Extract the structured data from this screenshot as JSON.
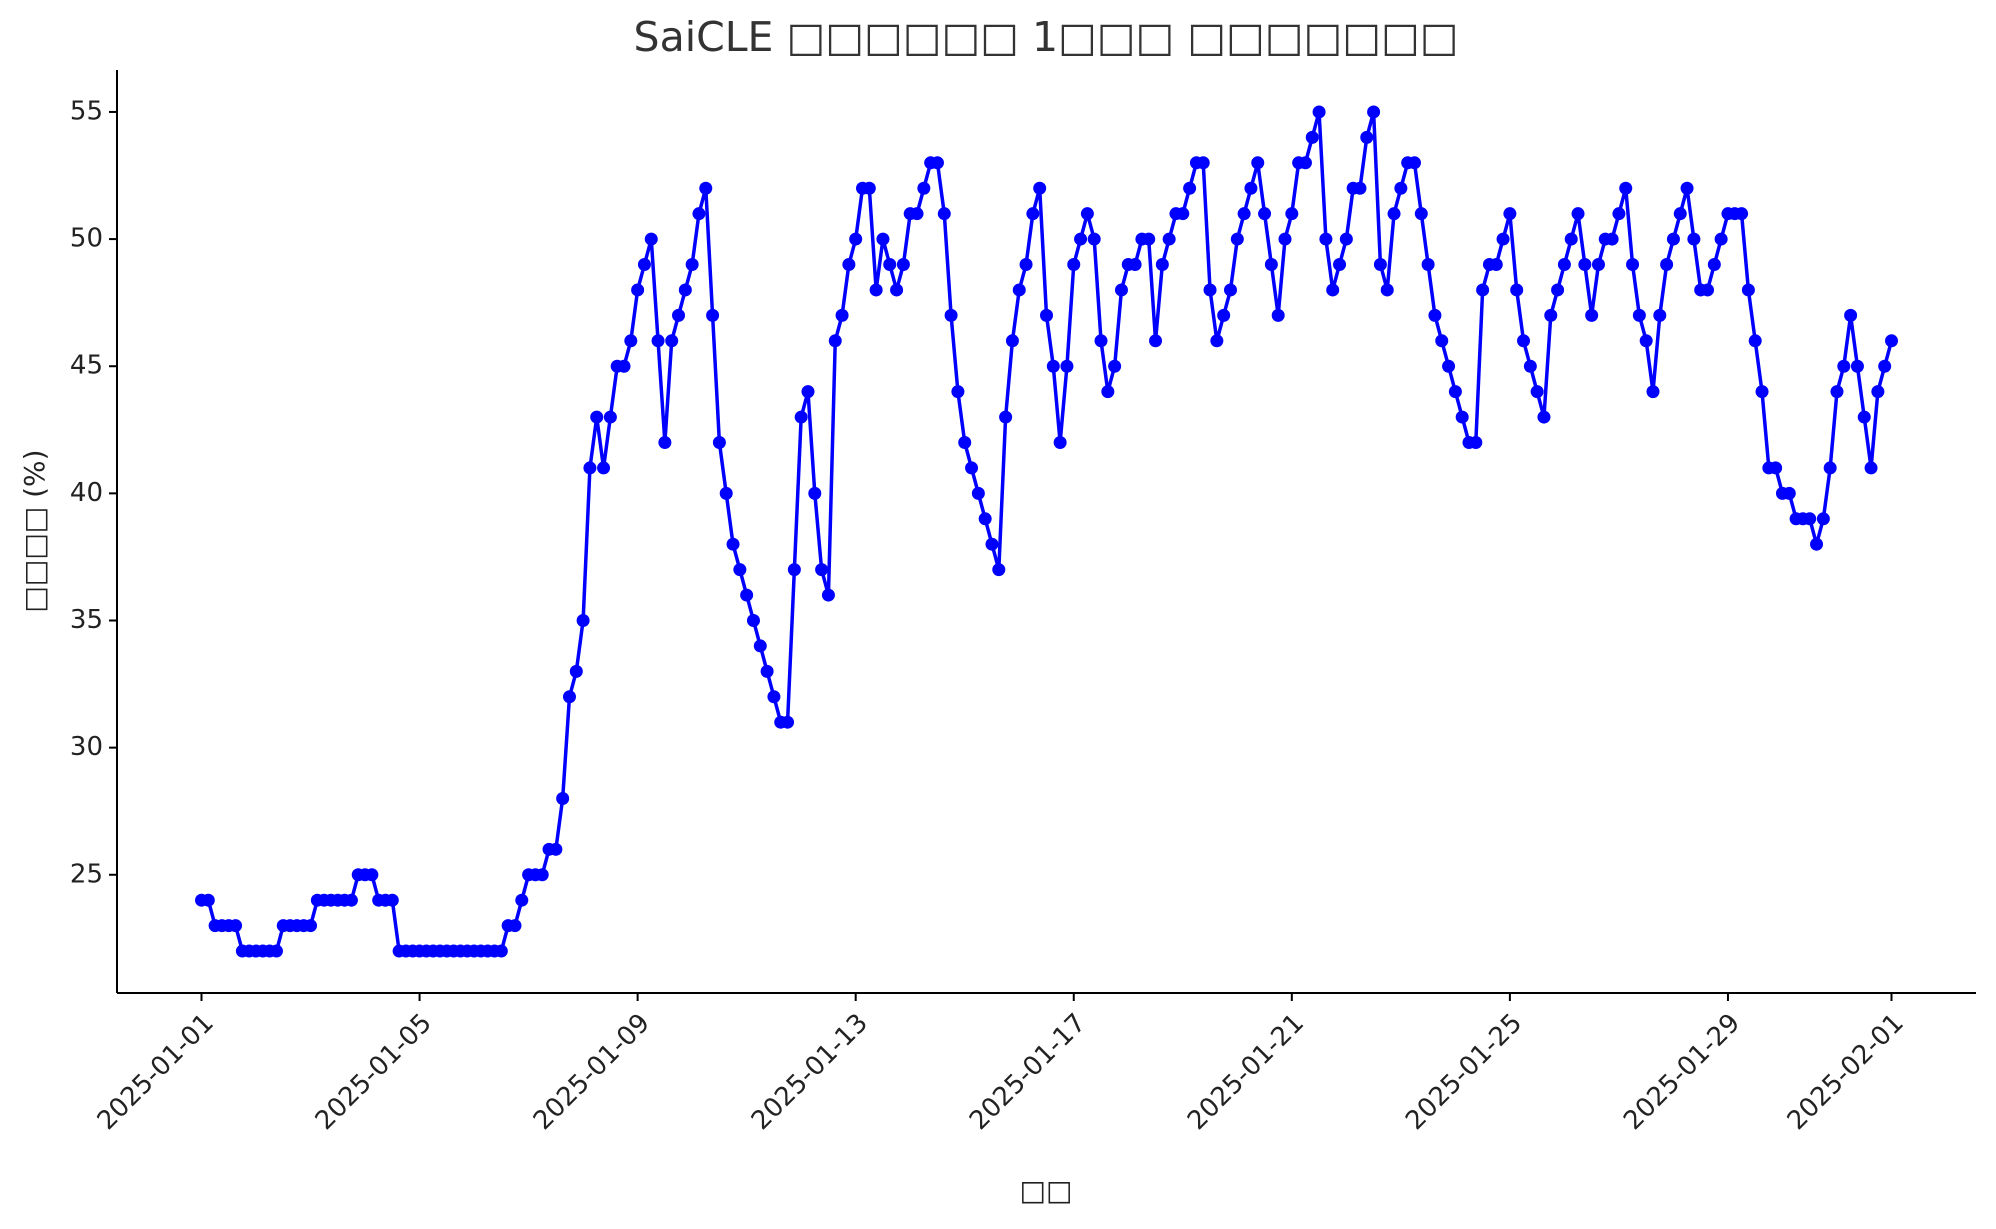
{
  "chart_data": {
    "type": "line",
    "title": "SaiCLE □□□□□□ 1□□□ □□□□□□□",
    "x_label": "□□",
    "y_label": "□□□□ (%)",
    "color": "#0000ff",
    "marker": true,
    "grid": false,
    "x": [
      "2025-01-01T00:00",
      "2025-01-01T03:00",
      "2025-01-01T06:00",
      "2025-01-01T09:00",
      "2025-01-01T12:00",
      "2025-01-01T15:00",
      "2025-01-01T18:00",
      "2025-01-01T21:00",
      "2025-01-02T00:00",
      "2025-01-02T03:00",
      "2025-01-02T06:00",
      "2025-01-02T09:00",
      "2025-01-02T12:00",
      "2025-01-02T15:00",
      "2025-01-02T18:00",
      "2025-01-02T21:00",
      "2025-01-03T00:00",
      "2025-01-03T03:00",
      "2025-01-03T06:00",
      "2025-01-03T09:00",
      "2025-01-03T12:00",
      "2025-01-03T15:00",
      "2025-01-03T18:00",
      "2025-01-03T21:00",
      "2025-01-04T00:00",
      "2025-01-04T03:00",
      "2025-01-04T06:00",
      "2025-01-04T09:00",
      "2025-01-04T12:00",
      "2025-01-04T15:00",
      "2025-01-04T18:00",
      "2025-01-04T21:00",
      "2025-01-05T00:00",
      "2025-01-05T03:00",
      "2025-01-05T06:00",
      "2025-01-05T09:00",
      "2025-01-05T12:00",
      "2025-01-05T15:00",
      "2025-01-05T18:00",
      "2025-01-05T21:00",
      "2025-01-06T00:00",
      "2025-01-06T03:00",
      "2025-01-06T06:00",
      "2025-01-06T09:00",
      "2025-01-06T12:00",
      "2025-01-06T15:00",
      "2025-01-06T18:00",
      "2025-01-06T21:00",
      "2025-01-07T00:00",
      "2025-01-07T03:00",
      "2025-01-07T06:00",
      "2025-01-07T09:00",
      "2025-01-07T12:00",
      "2025-01-07T15:00",
      "2025-01-07T18:00",
      "2025-01-07T21:00",
      "2025-01-08T00:00",
      "2025-01-08T03:00",
      "2025-01-08T06:00",
      "2025-01-08T09:00",
      "2025-01-08T12:00",
      "2025-01-08T15:00",
      "2025-01-08T18:00",
      "2025-01-08T21:00",
      "2025-01-09T00:00",
      "2025-01-09T03:00",
      "2025-01-09T06:00",
      "2025-01-09T09:00",
      "2025-01-09T12:00",
      "2025-01-09T15:00",
      "2025-01-09T18:00",
      "2025-01-09T21:00",
      "2025-01-10T00:00",
      "2025-01-10T03:00",
      "2025-01-10T06:00",
      "2025-01-10T09:00",
      "2025-01-10T12:00",
      "2025-01-10T15:00",
      "2025-01-10T18:00",
      "2025-01-10T21:00",
      "2025-01-11T00:00",
      "2025-01-11T03:00",
      "2025-01-11T06:00",
      "2025-01-11T09:00",
      "2025-01-11T12:00",
      "2025-01-11T15:00",
      "2025-01-11T18:00",
      "2025-01-11T21:00",
      "2025-01-12T00:00",
      "2025-01-12T03:00",
      "2025-01-12T06:00",
      "2025-01-12T09:00",
      "2025-01-12T12:00",
      "2025-01-12T15:00",
      "2025-01-12T18:00",
      "2025-01-12T21:00",
      "2025-01-13T00:00",
      "2025-01-13T03:00",
      "2025-01-13T06:00",
      "2025-01-13T09:00",
      "2025-01-13T12:00",
      "2025-01-13T15:00",
      "2025-01-13T18:00",
      "2025-01-13T21:00",
      "2025-01-14T00:00",
      "2025-01-14T03:00",
      "2025-01-14T06:00",
      "2025-01-14T09:00",
      "2025-01-14T12:00",
      "2025-01-14T15:00",
      "2025-01-14T18:00",
      "2025-01-14T21:00",
      "2025-01-15T00:00",
      "2025-01-15T03:00",
      "2025-01-15T06:00",
      "2025-01-15T09:00",
      "2025-01-15T12:00",
      "2025-01-15T15:00",
      "2025-01-15T18:00",
      "2025-01-15T21:00",
      "2025-01-16T00:00",
      "2025-01-16T03:00",
      "2025-01-16T06:00",
      "2025-01-16T09:00",
      "2025-01-16T12:00",
      "2025-01-16T15:00",
      "2025-01-16T18:00",
      "2025-01-16T21:00",
      "2025-01-17T00:00",
      "2025-01-17T03:00",
      "2025-01-17T06:00",
      "2025-01-17T09:00",
      "2025-01-17T12:00",
      "2025-01-17T15:00",
      "2025-01-17T18:00",
      "2025-01-17T21:00",
      "2025-01-18T00:00",
      "2025-01-18T03:00",
      "2025-01-18T06:00",
      "2025-01-18T09:00",
      "2025-01-18T12:00",
      "2025-01-18T15:00",
      "2025-01-18T18:00",
      "2025-01-18T21:00",
      "2025-01-19T00:00",
      "2025-01-19T03:00",
      "2025-01-19T06:00",
      "2025-01-19T09:00",
      "2025-01-19T12:00",
      "2025-01-19T15:00",
      "2025-01-19T18:00",
      "2025-01-19T21:00",
      "2025-01-20T00:00",
      "2025-01-20T03:00",
      "2025-01-20T06:00",
      "2025-01-20T09:00",
      "2025-01-20T12:00",
      "2025-01-20T15:00",
      "2025-01-20T18:00",
      "2025-01-20T21:00",
      "2025-01-21T00:00",
      "2025-01-21T03:00",
      "2025-01-21T06:00",
      "2025-01-21T09:00",
      "2025-01-21T12:00",
      "2025-01-21T15:00",
      "2025-01-21T18:00",
      "2025-01-21T21:00",
      "2025-01-22T00:00",
      "2025-01-22T03:00",
      "2025-01-22T06:00",
      "2025-01-22T09:00",
      "2025-01-22T12:00",
      "2025-01-22T15:00",
      "2025-01-22T18:00",
      "2025-01-22T21:00",
      "2025-01-23T00:00",
      "2025-01-23T03:00",
      "2025-01-23T06:00",
      "2025-01-23T09:00",
      "2025-01-23T12:00",
      "2025-01-23T15:00",
      "2025-01-23T18:00",
      "2025-01-23T21:00",
      "2025-01-24T00:00",
      "2025-01-24T03:00",
      "2025-01-24T06:00",
      "2025-01-24T09:00",
      "2025-01-24T12:00",
      "2025-01-24T15:00",
      "2025-01-24T18:00",
      "2025-01-24T21:00",
      "2025-01-25T00:00",
      "2025-01-25T03:00",
      "2025-01-25T06:00",
      "2025-01-25T09:00",
      "2025-01-25T12:00",
      "2025-01-25T15:00",
      "2025-01-25T18:00",
      "2025-01-25T21:00",
      "2025-01-26T00:00",
      "2025-01-26T03:00",
      "2025-01-26T06:00",
      "2025-01-26T09:00",
      "2025-01-26T12:00",
      "2025-01-26T15:00",
      "2025-01-26T18:00",
      "2025-01-26T21:00",
      "2025-01-27T00:00",
      "2025-01-27T03:00",
      "2025-01-27T06:00",
      "2025-01-27T09:00",
      "2025-01-27T12:00",
      "2025-01-27T15:00",
      "2025-01-27T18:00",
      "2025-01-27T21:00",
      "2025-01-28T00:00",
      "2025-01-28T03:00",
      "2025-01-28T06:00",
      "2025-01-28T09:00",
      "2025-01-28T12:00",
      "2025-01-28T15:00",
      "2025-01-28T18:00",
      "2025-01-28T21:00",
      "2025-01-29T00:00",
      "2025-01-29T03:00",
      "2025-01-29T06:00",
      "2025-01-29T09:00",
      "2025-01-29T12:00",
      "2025-01-29T15:00",
      "2025-01-29T18:00",
      "2025-01-29T21:00",
      "2025-01-30T00:00",
      "2025-01-30T03:00",
      "2025-01-30T06:00",
      "2025-01-30T09:00",
      "2025-01-30T12:00",
      "2025-01-30T15:00",
      "2025-01-30T18:00",
      "2025-01-30T21:00",
      "2025-01-31T00:00",
      "2025-01-31T03:00",
      "2025-01-31T06:00",
      "2025-01-31T09:00",
      "2025-01-31T12:00",
      "2025-01-31T15:00",
      "2025-01-31T18:00",
      "2025-01-31T21:00",
      "2025-02-01T00:00"
    ],
    "values": [
      24,
      24,
      23,
      23,
      23,
      23,
      22,
      22,
      22,
      22,
      22,
      22,
      23,
      23,
      23,
      23,
      23,
      24,
      24,
      24,
      24,
      24,
      24,
      25,
      25,
      25,
      24,
      24,
      24,
      22,
      22,
      22,
      22,
      22,
      22,
      22,
      22,
      22,
      22,
      22,
      22,
      22,
      22,
      22,
      22,
      23,
      23,
      24,
      25,
      25,
      25,
      26,
      26,
      28,
      32,
      33,
      35,
      41,
      43,
      41,
      43,
      45,
      45,
      46,
      48,
      49,
      50,
      46,
      42,
      46,
      47,
      48,
      49,
      51,
      52,
      47,
      42,
      40,
      38,
      37,
      36,
      35,
      34,
      33,
      32,
      31,
      31,
      37,
      43,
      44,
      40,
      37,
      36,
      46,
      47,
      49,
      50,
      52,
      52,
      48,
      50,
      49,
      48,
      49,
      51,
      51,
      52,
      53,
      53,
      51,
      47,
      44,
      42,
      41,
      40,
      39,
      38,
      37,
      43,
      46,
      48,
      49,
      51,
      52,
      47,
      45,
      42,
      45,
      49,
      50,
      51,
      50,
      46,
      44,
      45,
      48,
      49,
      49,
      50,
      50,
      46,
      49,
      50,
      51,
      51,
      52,
      53,
      53,
      48,
      46,
      47,
      48,
      50,
      51,
      52,
      53,
      51,
      49,
      47,
      50,
      51,
      53,
      53,
      54,
      55,
      50,
      48,
      49,
      50,
      52,
      52,
      54,
      55,
      49,
      48,
      51,
      52,
      53,
      53,
      51,
      49,
      47,
      46,
      45,
      44,
      43,
      42,
      42,
      48,
      49,
      49,
      50,
      51,
      48,
      46,
      45,
      44,
      43,
      47,
      48,
      49,
      50,
      51,
      49,
      47,
      49,
      50,
      50,
      51,
      52,
      49,
      47,
      46,
      44,
      47,
      49,
      50,
      51,
      52,
      50,
      48,
      48,
      49,
      50,
      51,
      51,
      51,
      48,
      46,
      44,
      41,
      41,
      40,
      40,
      39,
      39,
      39,
      38,
      39,
      41,
      44,
      45,
      47,
      45,
      43,
      41,
      44,
      45,
      46
    ],
    "xlim": [
      "2024-12-30T10:48",
      "2025-02-02T13:12"
    ],
    "xticks": [
      "2025-01-01",
      "2025-01-05",
      "2025-01-09",
      "2025-01-13",
      "2025-01-17",
      "2025-01-21",
      "2025-01-25",
      "2025-01-29",
      "2025-02-01"
    ],
    "ylim": [
      20.35,
      56.65
    ],
    "yticks": [
      25,
      30,
      35,
      40,
      45,
      50,
      55
    ]
  }
}
